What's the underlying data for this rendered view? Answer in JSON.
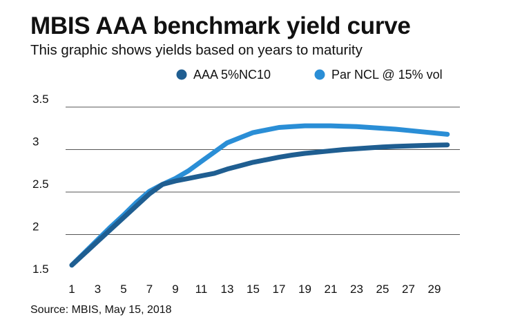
{
  "title": "MBIS AAA benchmark yield curve",
  "subtitle": "This graphic shows yields based on years to maturity",
  "source": "Source: MBIS, May 15, 2018",
  "chart_data": {
    "type": "line",
    "title": "MBIS AAA benchmark yield curve",
    "xlabel": "",
    "ylabel": "",
    "xlim": [
      0,
      30
    ],
    "ylim": [
      1.4,
      3.5
    ],
    "x_ticks": [
      1,
      3,
      5,
      7,
      9,
      11,
      13,
      15,
      17,
      19,
      21,
      23,
      25,
      27,
      29
    ],
    "y_ticks": [
      1.5,
      2,
      2.5,
      3,
      3.5
    ],
    "y_tick_labels": [
      "1.5",
      "2",
      "2.5",
      "3",
      "3.5"
    ],
    "grid": true,
    "legend_position": "top-right",
    "x": [
      1,
      2,
      3,
      4,
      5,
      6,
      7,
      8,
      9,
      10,
      11,
      12,
      13,
      14,
      15,
      16,
      17,
      18,
      19,
      20,
      21,
      22,
      23,
      24,
      25,
      26,
      27,
      28,
      29,
      30
    ],
    "series": [
      {
        "name": "AAA 5%NC10",
        "color": "#1f5e91",
        "values": [
          1.64,
          1.78,
          1.92,
          2.06,
          2.2,
          2.34,
          2.48,
          2.59,
          2.63,
          2.66,
          2.69,
          2.72,
          2.77,
          2.81,
          2.85,
          2.88,
          2.91,
          2.935,
          2.955,
          2.97,
          2.985,
          3.0,
          3.01,
          3.02,
          3.03,
          3.037,
          3.043,
          3.048,
          3.052,
          3.055
        ]
      },
      {
        "name": "Par NCL @ 15% vol",
        "color": "#2a8ed6",
        "values": [
          1.64,
          1.79,
          1.94,
          2.09,
          2.23,
          2.38,
          2.51,
          2.59,
          2.66,
          2.75,
          2.86,
          2.97,
          3.08,
          3.14,
          3.2,
          3.23,
          3.26,
          3.27,
          3.28,
          3.28,
          3.28,
          3.275,
          3.27,
          3.26,
          3.25,
          3.24,
          3.225,
          3.21,
          3.195,
          3.18
        ]
      }
    ]
  }
}
